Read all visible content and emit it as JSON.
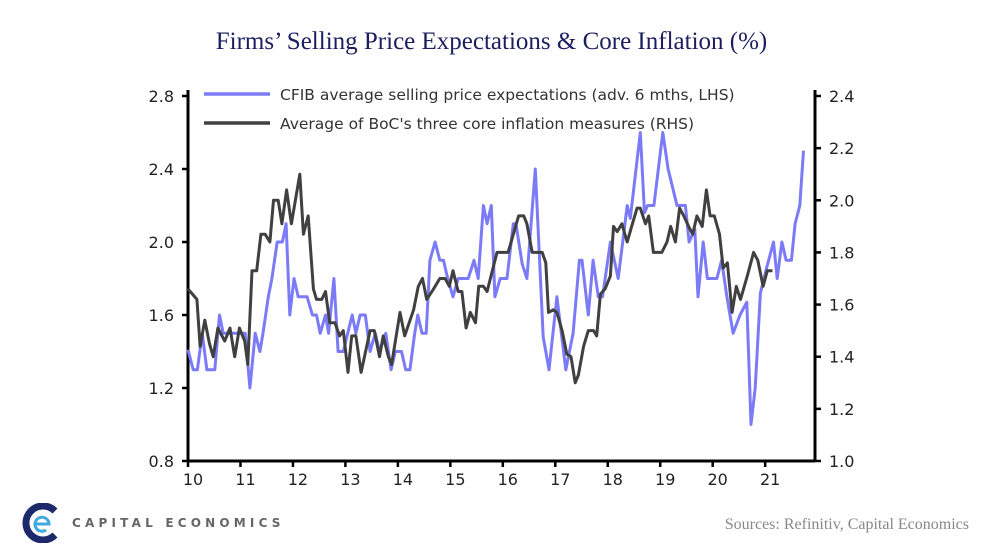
{
  "chart_data": {
    "type": "line",
    "title": "Firms’ Selling Price Expectations & Core Inflation (%)",
    "x_tick_labels": [
      "10",
      "11",
      "12",
      "13",
      "14",
      "15",
      "16",
      "17",
      "18",
      "19",
      "20",
      "21"
    ],
    "x_range": [
      2010,
      2021.95
    ],
    "left_axis": {
      "range": [
        0.8,
        2.8
      ],
      "ticks": [
        "0.8",
        "1.2",
        "1.6",
        "2.0",
        "2.4",
        "2.8"
      ]
    },
    "right_axis": {
      "range": [
        1.0,
        2.4
      ],
      "ticks": [
        "1.0",
        "1.2",
        "1.4",
        "1.6",
        "1.8",
        "2.0",
        "2.2",
        "2.4"
      ]
    },
    "grid": false,
    "legend_position": "top",
    "series": [
      {
        "name": "CFIB average selling price expectations (adv. 6 mths, LHS)",
        "axis": "left",
        "color": "#7b7bf7",
        "points": [
          [
            2010.0,
            1.41
          ],
          [
            2010.1,
            1.3
          ],
          [
            2010.18,
            1.3
          ],
          [
            2010.27,
            1.5
          ],
          [
            2010.36,
            1.3
          ],
          [
            2010.51,
            1.3
          ],
          [
            2010.6,
            1.6
          ],
          [
            2010.67,
            1.5
          ],
          [
            2010.8,
            1.5
          ],
          [
            2011.09,
            1.5
          ],
          [
            2011.18,
            1.2
          ],
          [
            2011.28,
            1.5
          ],
          [
            2011.37,
            1.4
          ],
          [
            2011.43,
            1.5
          ],
          [
            2011.53,
            1.7
          ],
          [
            2011.6,
            1.8
          ],
          [
            2011.7,
            2.0
          ],
          [
            2011.8,
            2.0
          ],
          [
            2011.87,
            2.1
          ],
          [
            2011.94,
            1.6
          ],
          [
            2012.02,
            1.8
          ],
          [
            2012.1,
            1.7
          ],
          [
            2012.27,
            1.7
          ],
          [
            2012.37,
            1.6
          ],
          [
            2012.45,
            1.6
          ],
          [
            2012.52,
            1.5
          ],
          [
            2012.62,
            1.6
          ],
          [
            2012.68,
            1.5
          ],
          [
            2012.78,
            1.8
          ],
          [
            2012.86,
            1.4
          ],
          [
            2012.96,
            1.4
          ],
          [
            2013.13,
            1.6
          ],
          [
            2013.2,
            1.5
          ],
          [
            2013.28,
            1.6
          ],
          [
            2013.38,
            1.6
          ],
          [
            2013.47,
            1.4
          ],
          [
            2013.57,
            1.5
          ],
          [
            2013.65,
            1.4
          ],
          [
            2013.77,
            1.5
          ],
          [
            2013.87,
            1.3
          ],
          [
            2013.95,
            1.4
          ],
          [
            2014.07,
            1.4
          ],
          [
            2014.15,
            1.3
          ],
          [
            2014.23,
            1.3
          ],
          [
            2014.32,
            1.5
          ],
          [
            2014.38,
            1.6
          ],
          [
            2014.46,
            1.5
          ],
          [
            2014.54,
            1.5
          ],
          [
            2014.61,
            1.9
          ],
          [
            2014.71,
            2.0
          ],
          [
            2014.8,
            1.9
          ],
          [
            2014.87,
            1.9
          ],
          [
            2014.95,
            1.8
          ],
          [
            2015.05,
            1.7
          ],
          [
            2015.15,
            1.8
          ],
          [
            2015.34,
            1.8
          ],
          [
            2015.45,
            1.9
          ],
          [
            2015.53,
            1.8
          ],
          [
            2015.63,
            2.2
          ],
          [
            2015.7,
            2.1
          ],
          [
            2015.78,
            2.2
          ],
          [
            2015.85,
            1.7
          ],
          [
            2015.95,
            1.8
          ],
          [
            2016.0,
            1.8
          ],
          [
            2016.08,
            1.8
          ],
          [
            2016.2,
            2.1
          ],
          [
            2016.25,
            2.1
          ],
          [
            2016.37,
            1.88
          ],
          [
            2016.46,
            1.8
          ],
          [
            2016.62,
            2.4
          ],
          [
            2016.77,
            1.48
          ],
          [
            2016.88,
            1.3
          ],
          [
            2017.03,
            1.7
          ],
          [
            2017.2,
            1.3
          ],
          [
            2017.34,
            1.5
          ],
          [
            2017.46,
            1.9
          ],
          [
            2017.51,
            1.9
          ],
          [
            2017.63,
            1.6
          ],
          [
            2017.72,
            1.9
          ],
          [
            2017.82,
            1.7
          ],
          [
            2017.9,
            1.7
          ],
          [
            2018.05,
            2.0
          ],
          [
            2018.2,
            1.8
          ],
          [
            2018.37,
            2.2
          ],
          [
            2018.43,
            2.13
          ],
          [
            2018.62,
            2.6
          ],
          [
            2018.7,
            2.16
          ],
          [
            2018.76,
            2.2
          ],
          [
            2018.88,
            2.2
          ],
          [
            2019.05,
            2.6
          ],
          [
            2019.15,
            2.4
          ],
          [
            2019.32,
            2.2
          ],
          [
            2019.48,
            2.2
          ],
          [
            2019.55,
            2.0
          ],
          [
            2019.66,
            2.07
          ],
          [
            2019.72,
            1.7
          ],
          [
            2019.82,
            2.0
          ],
          [
            2019.9,
            1.8
          ],
          [
            2020.08,
            1.8
          ],
          [
            2020.17,
            1.9
          ],
          [
            2020.27,
            1.7
          ],
          [
            2020.39,
            1.5
          ],
          [
            2020.52,
            1.6
          ],
          [
            2020.65,
            1.67
          ],
          [
            2020.73,
            1.0
          ],
          [
            2020.81,
            1.2
          ],
          [
            2020.91,
            1.72
          ],
          [
            2021.03,
            1.86
          ],
          [
            2021.16,
            2.0
          ],
          [
            2021.23,
            1.8
          ],
          [
            2021.32,
            2.0
          ],
          [
            2021.4,
            1.9
          ],
          [
            2021.5,
            1.9
          ],
          [
            2021.57,
            2.1
          ],
          [
            2021.66,
            2.2
          ],
          [
            2021.73,
            2.5
          ]
        ]
      },
      {
        "name": "Average of BoC's three core inflation measures (RHS)",
        "axis": "right",
        "color": "#404040",
        "points": [
          [
            2010.0,
            1.66
          ],
          [
            2010.17,
            1.62
          ],
          [
            2010.23,
            1.44
          ],
          [
            2010.32,
            1.54
          ],
          [
            2010.41,
            1.45
          ],
          [
            2010.48,
            1.4
          ],
          [
            2010.57,
            1.51
          ],
          [
            2010.7,
            1.46
          ],
          [
            2010.8,
            1.51
          ],
          [
            2010.89,
            1.4
          ],
          [
            2010.98,
            1.51
          ],
          [
            2011.08,
            1.46
          ],
          [
            2011.14,
            1.37
          ],
          [
            2011.22,
            1.73
          ],
          [
            2011.31,
            1.73
          ],
          [
            2011.39,
            1.87
          ],
          [
            2011.47,
            1.87
          ],
          [
            2011.56,
            1.84
          ],
          [
            2011.63,
            2.0
          ],
          [
            2011.72,
            2.0
          ],
          [
            2011.79,
            1.91
          ],
          [
            2011.88,
            2.04
          ],
          [
            2011.97,
            1.91
          ],
          [
            2012.13,
            2.1
          ],
          [
            2012.2,
            1.87
          ],
          [
            2012.29,
            1.94
          ],
          [
            2012.39,
            1.66
          ],
          [
            2012.45,
            1.62
          ],
          [
            2012.55,
            1.62
          ],
          [
            2012.62,
            1.65
          ],
          [
            2012.7,
            1.53
          ],
          [
            2012.8,
            1.53
          ],
          [
            2012.89,
            1.48
          ],
          [
            2012.96,
            1.5
          ],
          [
            2013.05,
            1.34
          ],
          [
            2013.12,
            1.48
          ],
          [
            2013.2,
            1.48
          ],
          [
            2013.3,
            1.34
          ],
          [
            2013.47,
            1.5
          ],
          [
            2013.55,
            1.5
          ],
          [
            2013.65,
            1.4
          ],
          [
            2013.72,
            1.48
          ],
          [
            2013.82,
            1.4
          ],
          [
            2013.88,
            1.37
          ],
          [
            2014.04,
            1.57
          ],
          [
            2014.13,
            1.48
          ],
          [
            2014.3,
            1.58
          ],
          [
            2014.39,
            1.67
          ],
          [
            2014.47,
            1.7
          ],
          [
            2014.55,
            1.62
          ],
          [
            2014.68,
            1.66
          ],
          [
            2014.8,
            1.7
          ],
          [
            2014.9,
            1.7
          ],
          [
            2014.98,
            1.67
          ],
          [
            2015.05,
            1.73
          ],
          [
            2015.15,
            1.65
          ],
          [
            2015.22,
            1.65
          ],
          [
            2015.3,
            1.51
          ],
          [
            2015.38,
            1.57
          ],
          [
            2015.48,
            1.53
          ],
          [
            2015.54,
            1.67
          ],
          [
            2015.63,
            1.67
          ],
          [
            2015.7,
            1.65
          ],
          [
            2015.89,
            1.8
          ],
          [
            2016.1,
            1.8
          ],
          [
            2016.3,
            1.94
          ],
          [
            2016.4,
            1.94
          ],
          [
            2016.46,
            1.91
          ],
          [
            2016.56,
            1.8
          ],
          [
            2016.75,
            1.8
          ],
          [
            2016.82,
            1.76
          ],
          [
            2016.87,
            1.57
          ],
          [
            2016.96,
            1.58
          ],
          [
            2017.03,
            1.57
          ],
          [
            2017.13,
            1.5
          ],
          [
            2017.22,
            1.41
          ],
          [
            2017.3,
            1.4
          ],
          [
            2017.38,
            1.3
          ],
          [
            2017.44,
            1.33
          ],
          [
            2017.54,
            1.44
          ],
          [
            2017.63,
            1.5
          ],
          [
            2017.73,
            1.5
          ],
          [
            2017.79,
            1.48
          ],
          [
            2017.86,
            1.64
          ],
          [
            2017.95,
            1.66
          ],
          [
            2018.05,
            1.71
          ],
          [
            2018.11,
            1.9
          ],
          [
            2018.18,
            1.88
          ],
          [
            2018.27,
            1.91
          ],
          [
            2018.37,
            1.84
          ],
          [
            2018.47,
            1.91
          ],
          [
            2018.56,
            1.97
          ],
          [
            2018.62,
            1.97
          ],
          [
            2018.72,
            1.91
          ],
          [
            2018.78,
            1.94
          ],
          [
            2018.87,
            1.8
          ],
          [
            2019.03,
            1.8
          ],
          [
            2019.13,
            1.84
          ],
          [
            2019.2,
            1.9
          ],
          [
            2019.29,
            1.84
          ],
          [
            2019.37,
            1.97
          ],
          [
            2019.45,
            1.94
          ],
          [
            2019.54,
            1.9
          ],
          [
            2019.62,
            1.87
          ],
          [
            2019.7,
            1.94
          ],
          [
            2019.8,
            1.9
          ],
          [
            2019.88,
            2.04
          ],
          [
            2019.95,
            1.94
          ],
          [
            2020.03,
            1.94
          ],
          [
            2020.13,
            1.87
          ],
          [
            2020.2,
            1.74
          ],
          [
            2020.28,
            1.76
          ],
          [
            2020.37,
            1.57
          ],
          [
            2020.45,
            1.67
          ],
          [
            2020.53,
            1.62
          ],
          [
            2020.66,
            1.71
          ],
          [
            2020.78,
            1.8
          ],
          [
            2020.86,
            1.77
          ],
          [
            2020.96,
            1.67
          ],
          [
            2021.04,
            1.73
          ],
          [
            2021.14,
            1.73
          ]
        ]
      }
    ]
  },
  "footer": {
    "source": "Sources: Refinitiv, Capital Economics",
    "logo_text": "CAPITAL ECONOMICS"
  }
}
